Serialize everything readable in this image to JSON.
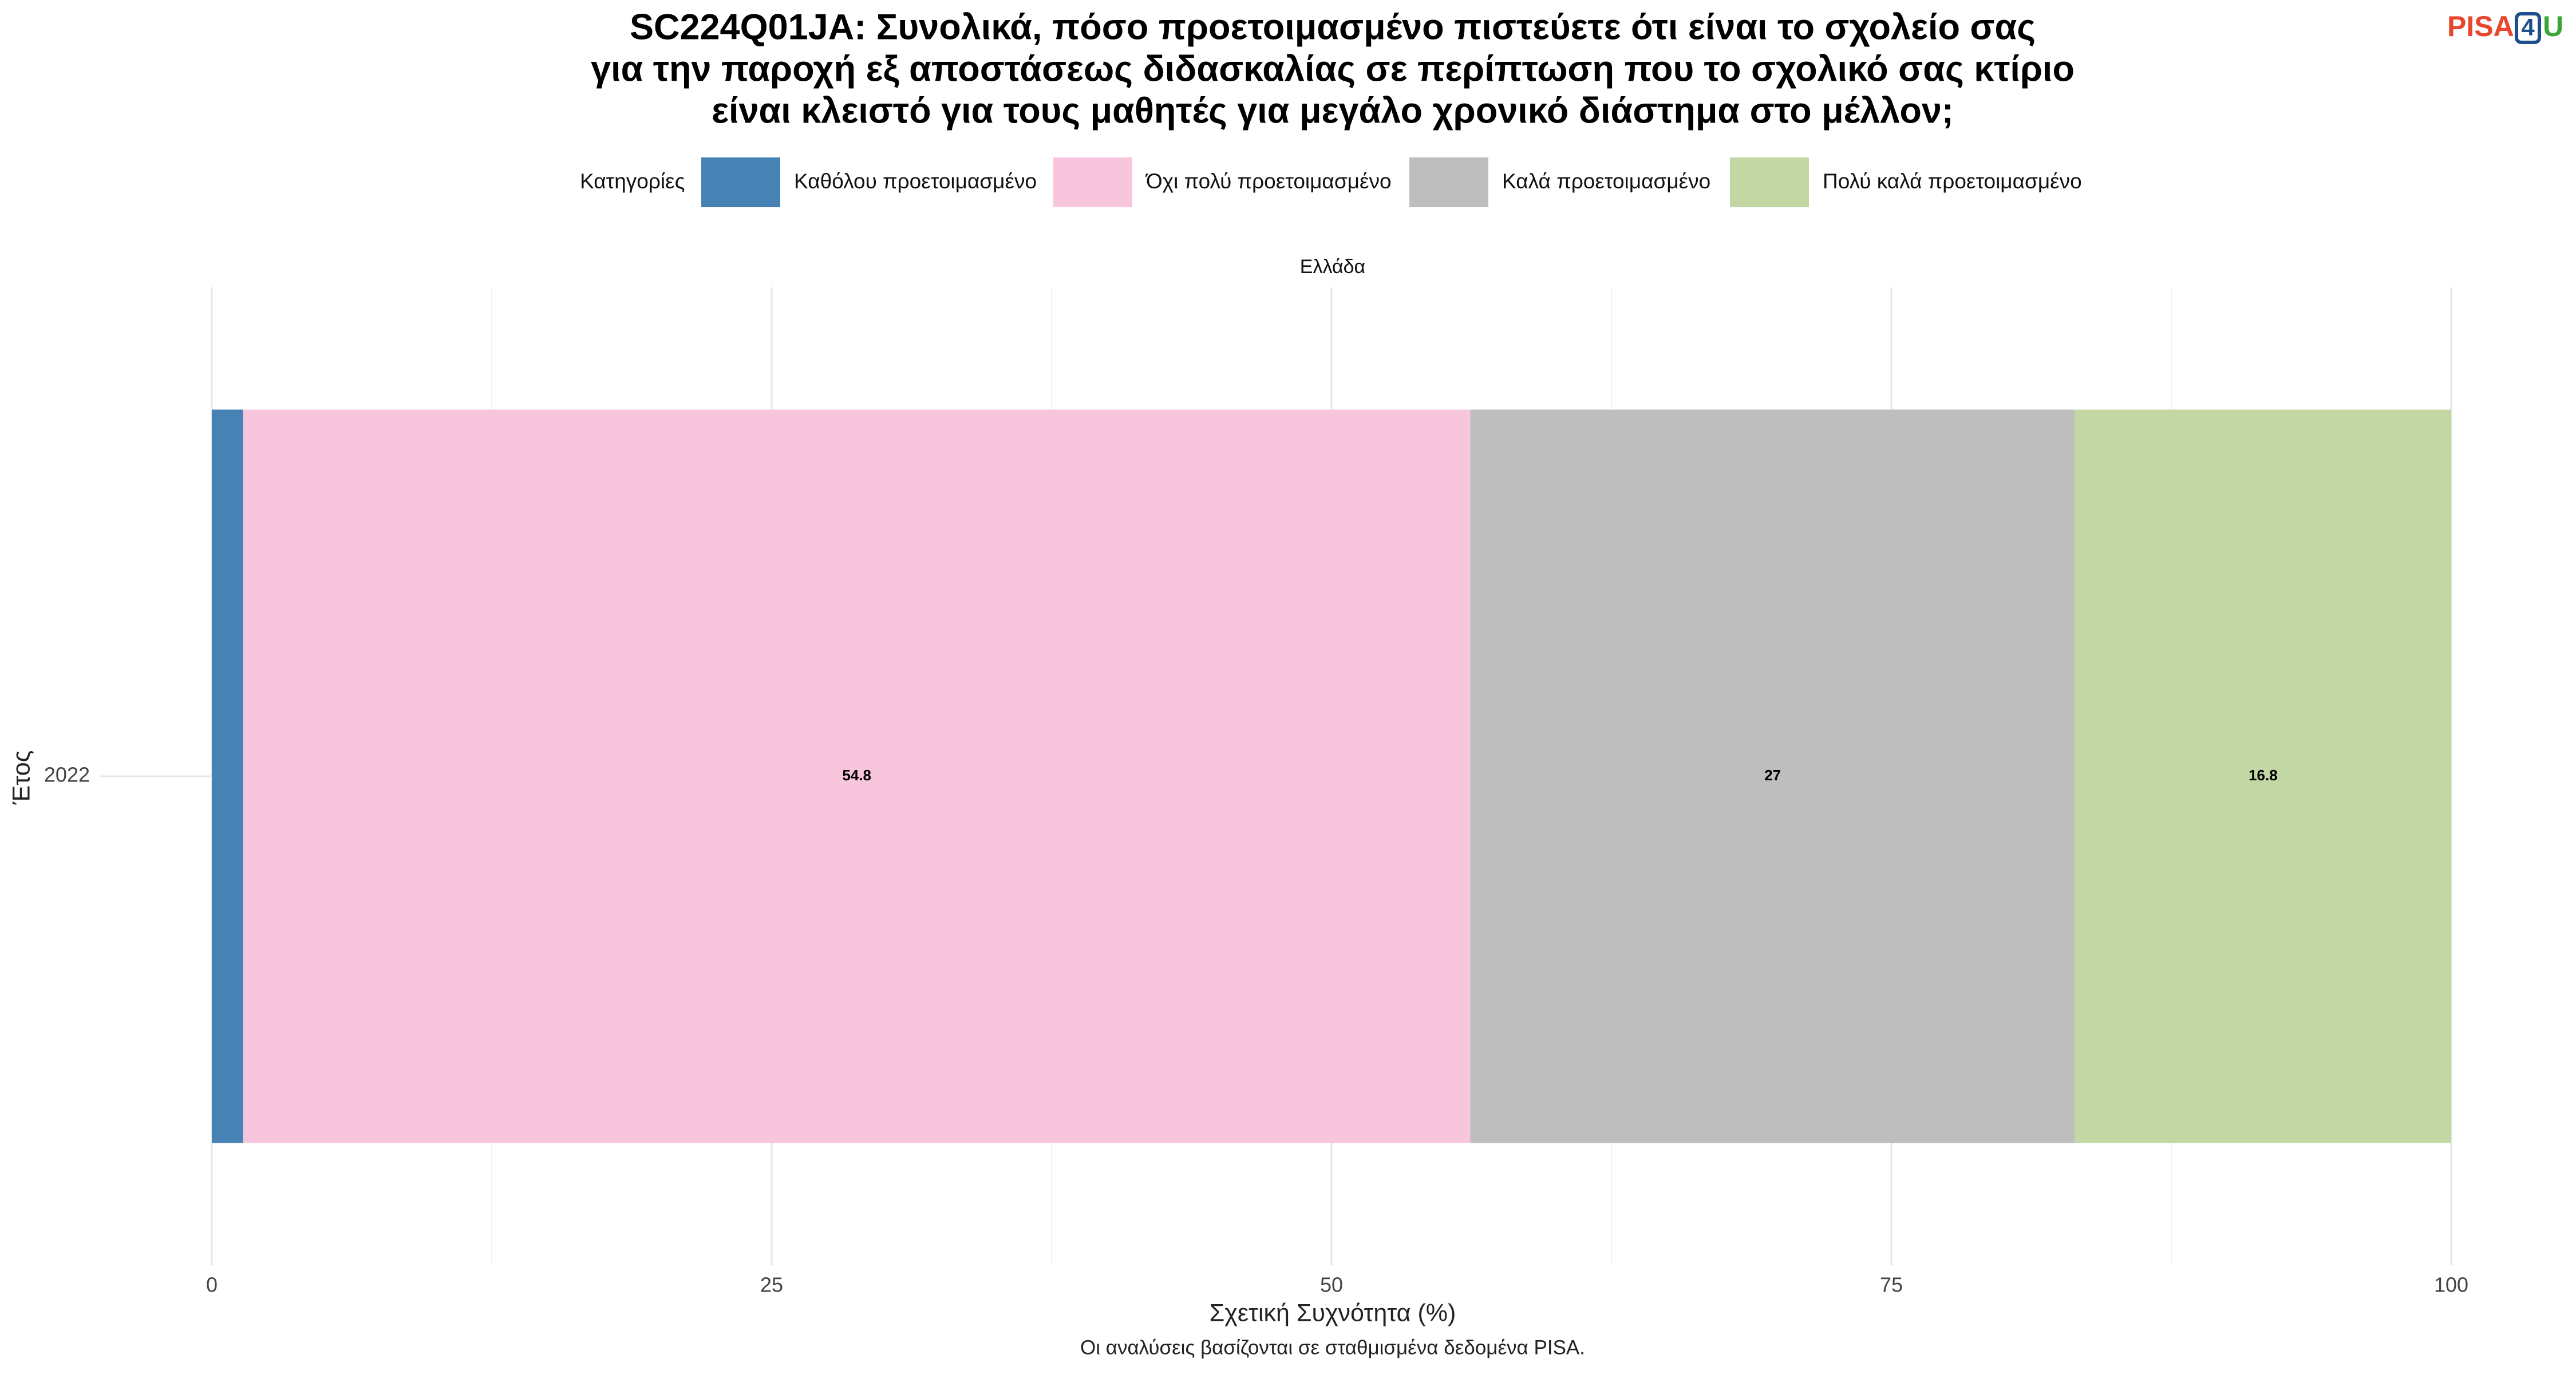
{
  "chart_data": {
    "type": "bar",
    "orientation": "horizontal",
    "stacked": true,
    "title": [
      "SC224Q01JA: Συνολικά, πόσο προετοιμασμένο πιστεύετε ότι είναι το σχολείο σας",
      "για την παροχή εξ αποστάσεως διδασκαλίας σε περίπτωση που το σχολικό σας κτίριο",
      "είναι κλειστό για τους μαθητές για μεγάλο χρονικό διάστημα στο μέλλον;"
    ],
    "logo": [
      "PISA",
      "4",
      "U"
    ],
    "legend_title": "Κατηγορίες",
    "legend_position": "top",
    "facet": "Ελλάδα",
    "categories": [
      "2022"
    ],
    "series": [
      {
        "name": "Καθόλου προετοιμασμένο",
        "color": "#4682b4",
        "values": [
          1.4
        ]
      },
      {
        "name": "Όχι πολύ προετοιμασμένο",
        "color": "#f7c6dc",
        "values": [
          54.8
        ],
        "value_labels": [
          "54.8"
        ]
      },
      {
        "name": "Καλά προετοιμασμένο",
        "color": "#bebebe",
        "values": [
          27
        ],
        "value_labels": [
          "27"
        ]
      },
      {
        "name": "Πολύ καλά προετοιμασμένο",
        "color": "#c3d7a4",
        "values": [
          16.8
        ],
        "value_labels": [
          "16.8"
        ]
      }
    ],
    "xlim": [
      0,
      100
    ],
    "xticks": [
      0,
      25,
      50,
      75,
      100
    ],
    "grid": true,
    "xlabel": "Σχετική Συχνότητα (%)",
    "ylabel": "Έτος",
    "caption": "Οι αναλύσεις βασίζονται σε σταθμισμένα δεδομένα PISA."
  }
}
